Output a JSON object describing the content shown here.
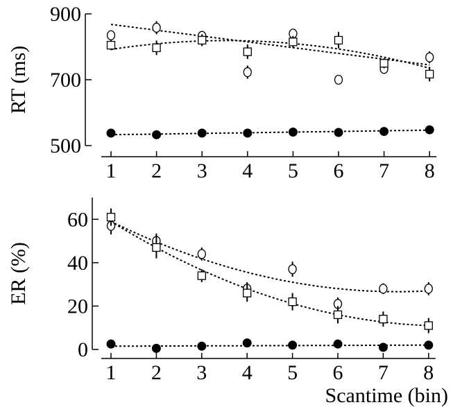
{
  "chart_data": [
    {
      "type": "scatter",
      "ylabel": "RT (ms)",
      "xlabel": "",
      "x": [
        1,
        2,
        3,
        4,
        5,
        6,
        7,
        8
      ],
      "ylim": [
        500,
        900
      ],
      "yticks": [
        500,
        700,
        900
      ],
      "xticks": [
        1,
        2,
        3,
        4,
        5,
        6,
        7,
        8
      ],
      "series": [
        {
          "marker": "open-circle",
          "values": [
            835,
            858,
            833,
            723,
            840,
            700,
            733,
            768
          ],
          "errors": [
            15,
            20,
            15,
            20,
            15,
            12,
            15,
            18
          ]
        },
        {
          "marker": "open-square",
          "values": [
            805,
            797,
            820,
            785,
            815,
            820,
            750,
            717
          ],
          "errors": [
            15,
            22,
            18,
            22,
            18,
            25,
            15,
            22
          ]
        },
        {
          "marker": "filled-circle",
          "values": [
            538,
            533,
            538,
            538,
            541,
            540,
            543,
            548
          ],
          "errors": [
            8,
            10,
            8,
            10,
            10,
            10,
            10,
            8
          ]
        }
      ],
      "fits": [
        {
          "type": "quadratic",
          "x": [
            1,
            8
          ],
          "y": [
            868,
            745
          ],
          "note_points": [
            [
              1,
              868
            ],
            [
              4,
              815
            ],
            [
              8,
              745
            ]
          ]
        },
        {
          "type": "quadratic",
          "x": [
            1,
            8
          ],
          "y": [
            792,
            735
          ],
          "note_points": [
            [
              1,
              792
            ],
            [
              4,
              818
            ],
            [
              8,
              735
            ]
          ]
        },
        {
          "type": "linear",
          "x": [
            1,
            8
          ],
          "y": [
            533,
            547
          ]
        }
      ]
    },
    {
      "type": "scatter",
      "ylabel": "ER (%)",
      "xlabel": "Scantime (bin)",
      "x": [
        1,
        2,
        3,
        4,
        5,
        6,
        7,
        8
      ],
      "ylim": [
        0,
        70
      ],
      "yticks": [
        0,
        20,
        40,
        60
      ],
      "xticks": [
        1,
        2,
        3,
        4,
        5,
        6,
        7,
        8
      ],
      "series": [
        {
          "marker": "open-circle",
          "values": [
            57,
            50,
            44,
            28,
            37,
            21,
            28,
            28
          ],
          "errors": [
            4,
            3.5,
            3,
            3,
            3.5,
            3,
            2.5,
            3
          ]
        },
        {
          "marker": "open-square",
          "values": [
            61,
            47,
            34,
            26,
            22,
            16,
            14,
            11
          ],
          "errors": [
            4,
            5,
            3,
            4,
            4,
            4,
            3.5,
            3.5
          ]
        },
        {
          "marker": "filled-circle",
          "values": [
            2.5,
            0.5,
            1.5,
            3,
            2,
            2.5,
            1,
            2
          ],
          "errors": [
            0.5,
            0.5,
            0.5,
            0.5,
            0.5,
            0.5,
            0.5,
            0.5
          ]
        }
      ],
      "fits": [
        {
          "type": "quadratic",
          "note_points": [
            [
              1,
              59
            ],
            [
              5,
              31
            ],
            [
              8,
              27
            ]
          ]
        },
        {
          "type": "quadratic",
          "note_points": [
            [
              1,
              59
            ],
            [
              4,
              28
            ],
            [
              8,
              11
            ]
          ]
        },
        {
          "type": "linear",
          "x": [
            1,
            8
          ],
          "y": [
            1.5,
            2
          ]
        }
      ]
    }
  ]
}
